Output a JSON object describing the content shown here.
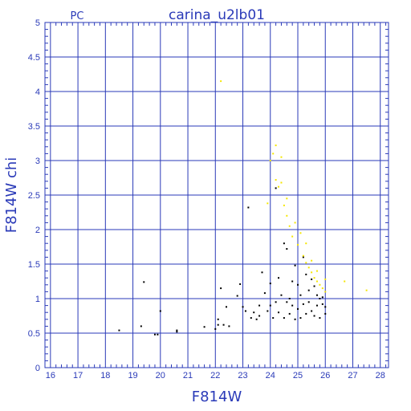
{
  "chart_data": {
    "type": "scatter",
    "title": "carina_u2lb01",
    "subtitle": "PC",
    "xlabel": "F814W",
    "ylabel": "F814W chi",
    "xlim": [
      15.8,
      28.3
    ],
    "ylim": [
      0,
      5
    ],
    "x_ticks": [
      "16",
      "17",
      "18",
      "19",
      "20",
      "21",
      "22",
      "23",
      "24",
      "25",
      "26",
      "27",
      "28"
    ],
    "y_ticks": [
      "0",
      "0.5",
      "1",
      "1.5",
      "2",
      "2.5",
      "3",
      "3.5",
      "4",
      "4.5",
      "5"
    ],
    "grid": true,
    "colors": {
      "axis": "#2a3ab8",
      "black_points": "#000000",
      "yellow_points": "#f5e600"
    },
    "series": [
      {
        "color": "#000000",
        "points": [
          [
            18.5,
            0.54
          ],
          [
            19.3,
            0.6
          ],
          [
            19.4,
            1.24
          ],
          [
            19.8,
            0.48
          ],
          [
            19.9,
            0.48
          ],
          [
            20.0,
            0.82
          ],
          [
            20.6,
            0.54
          ],
          [
            20.6,
            0.52
          ],
          [
            21.6,
            0.59
          ],
          [
            22.0,
            0.56
          ],
          [
            22.1,
            0.62
          ],
          [
            22.1,
            0.7
          ],
          [
            22.2,
            1.15
          ],
          [
            22.3,
            0.62
          ],
          [
            22.4,
            0.88
          ],
          [
            22.5,
            0.6
          ],
          [
            22.8,
            1.04
          ],
          [
            22.9,
            1.21
          ],
          [
            23.0,
            0.88
          ],
          [
            23.1,
            0.82
          ],
          [
            23.2,
            2.32
          ],
          [
            23.3,
            0.72
          ],
          [
            23.4,
            0.8
          ],
          [
            23.5,
            0.7
          ],
          [
            23.6,
            0.9
          ],
          [
            23.6,
            0.75
          ],
          [
            23.7,
            1.38
          ],
          [
            23.8,
            1.08
          ],
          [
            23.9,
            0.82
          ],
          [
            24.0,
            0.9
          ],
          [
            24.0,
            1.22
          ],
          [
            24.1,
            0.72
          ],
          [
            24.2,
            0.95
          ],
          [
            24.2,
            2.6
          ],
          [
            24.3,
            1.3
          ],
          [
            24.3,
            0.8
          ],
          [
            24.4,
            1.05
          ],
          [
            24.5,
            0.72
          ],
          [
            24.5,
            1.8
          ],
          [
            24.6,
            0.95
          ],
          [
            24.6,
            1.72
          ],
          [
            24.7,
            1.0
          ],
          [
            24.7,
            0.78
          ],
          [
            24.8,
            1.25
          ],
          [
            24.8,
            0.9
          ],
          [
            24.9,
            1.48
          ],
          [
            24.9,
            0.7
          ],
          [
            25.0,
            1.2
          ],
          [
            25.0,
            0.85
          ],
          [
            25.1,
            1.05
          ],
          [
            25.1,
            0.72
          ],
          [
            25.2,
            1.6
          ],
          [
            25.2,
            0.92
          ],
          [
            25.3,
            1.35
          ],
          [
            25.3,
            0.78
          ],
          [
            25.4,
            1.12
          ],
          [
            25.4,
            0.95
          ],
          [
            25.5,
            1.28
          ],
          [
            25.5,
            0.82
          ],
          [
            25.6,
            1.18
          ],
          [
            25.6,
            0.75
          ],
          [
            25.7,
            1.05
          ],
          [
            25.7,
            0.9
          ],
          [
            25.8,
            1.0
          ],
          [
            25.8,
            0.72
          ],
          [
            25.9,
            0.92
          ],
          [
            25.9,
            1.02
          ],
          [
            26.0,
            0.88
          ],
          [
            26.0,
            0.78
          ]
        ]
      },
      {
        "color": "#f5e600",
        "points": [
          [
            22.2,
            4.15
          ],
          [
            23.9,
            2.38
          ],
          [
            24.0,
            3.0
          ],
          [
            24.1,
            3.1
          ],
          [
            24.2,
            3.22
          ],
          [
            24.2,
            2.72
          ],
          [
            24.3,
            2.62
          ],
          [
            24.4,
            3.05
          ],
          [
            24.4,
            2.68
          ],
          [
            24.5,
            2.35
          ],
          [
            24.6,
            2.2
          ],
          [
            24.6,
            2.45
          ],
          [
            24.7,
            2.05
          ],
          [
            24.8,
            1.9
          ],
          [
            24.9,
            2.1
          ],
          [
            25.0,
            1.78
          ],
          [
            25.1,
            1.95
          ],
          [
            25.2,
            1.62
          ],
          [
            25.3,
            1.8
          ],
          [
            25.3,
            1.52
          ],
          [
            25.4,
            1.45
          ],
          [
            25.5,
            1.38
          ],
          [
            25.5,
            1.55
          ],
          [
            25.6,
            1.3
          ],
          [
            25.7,
            1.25
          ],
          [
            25.7,
            1.4
          ],
          [
            25.8,
            1.2
          ],
          [
            25.9,
            1.15
          ],
          [
            26.0,
            1.1
          ],
          [
            26.0,
            1.28
          ],
          [
            26.7,
            1.25
          ],
          [
            27.5,
            1.12
          ]
        ]
      }
    ]
  }
}
